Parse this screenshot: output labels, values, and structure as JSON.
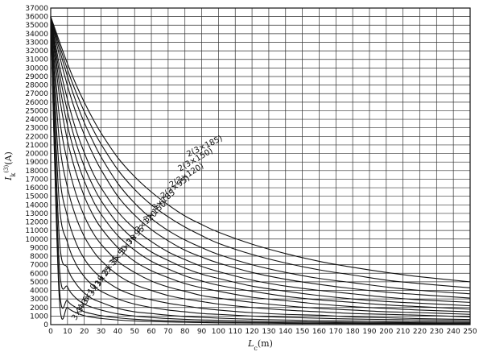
{
  "chart_data": {
    "type": "line",
    "title": "",
    "xlabel": {
      "main": "L",
      "sub": "c",
      "unit": "(m)"
    },
    "ylabel": {
      "main": "I",
      "sub": "k",
      "sup": "(3)",
      "unit": "(A)"
    },
    "xlim": [
      0,
      250
    ],
    "ylim": [
      0,
      37000
    ],
    "x_ticks": [
      0,
      10,
      20,
      30,
      40,
      50,
      60,
      70,
      80,
      90,
      100,
      110,
      120,
      130,
      140,
      150,
      160,
      170,
      180,
      190,
      200,
      210,
      220,
      230,
      240,
      250
    ],
    "y_ticks": [
      0,
      1000,
      2000,
      3000,
      4000,
      5000,
      6000,
      7000,
      8000,
      9000,
      10000,
      11000,
      12000,
      13000,
      14000,
      15000,
      16000,
      17000,
      18000,
      19000,
      20000,
      21000,
      22000,
      23000,
      24000,
      25000,
      26000,
      27000,
      28000,
      29000,
      30000,
      31000,
      32000,
      33000,
      34000,
      35000,
      36000,
      37000
    ],
    "grid": true,
    "x": [
      0,
      5,
      10,
      15,
      20,
      25,
      30,
      40,
      50,
      60,
      70,
      80,
      90,
      100,
      120,
      140,
      160,
      180,
      200,
      220,
      250
    ],
    "series": [
      {
        "name": "2(3×185)",
        "values": [
          36000,
          33200,
          30500,
          28100,
          26000,
          24100,
          22400,
          19500,
          17300,
          15500,
          14000,
          12700,
          11700,
          10800,
          9400,
          8300,
          7400,
          6700,
          6100,
          5600,
          5000
        ]
      },
      {
        "name": "2(3×150)",
        "values": [
          36000,
          32800,
          29800,
          27200,
          24900,
          22900,
          21100,
          18100,
          15800,
          14000,
          12600,
          11400,
          10400,
          9500,
          8200,
          7200,
          6400,
          5800,
          5200,
          4800,
          4300
        ]
      },
      {
        "name": "2(3×120)",
        "values": [
          36000,
          32300,
          29000,
          26100,
          23600,
          21500,
          19600,
          16500,
          14200,
          12400,
          11000,
          9900,
          9000,
          8200,
          7000,
          6100,
          5400,
          4900,
          4400,
          4000,
          3600
        ]
      },
      {
        "name": "2(3×95)",
        "values": [
          36000,
          31600,
          27900,
          24800,
          22200,
          20000,
          18100,
          15000,
          12800,
          11100,
          9800,
          8700,
          7900,
          7200,
          6100,
          5300,
          4700,
          4200,
          3800,
          3500,
          3100
        ]
      },
      {
        "name": "3×185",
        "values": [
          36000,
          30500,
          26300,
          22800,
          20100,
          17800,
          16000,
          13200,
          11200,
          9700,
          8500,
          7600,
          6800,
          6200,
          5200,
          4500,
          4000,
          3600,
          3200,
          2900,
          2600
        ]
      },
      {
        "name": "3×150",
        "values": [
          36000,
          29600,
          24900,
          21300,
          18500,
          16300,
          14500,
          11800,
          9900,
          8500,
          7500,
          6600,
          5900,
          5400,
          4500,
          3900,
          3400,
          3000,
          2700,
          2500,
          2200
        ]
      },
      {
        "name": "3×120",
        "values": [
          36000,
          28400,
          23300,
          19600,
          16800,
          14600,
          12900,
          10400,
          8700,
          7400,
          6500,
          5700,
          5100,
          4600,
          3900,
          3300,
          2900,
          2600,
          2300,
          2100,
          1800
        ]
      },
      {
        "name": "3×95",
        "values": [
          36000,
          27000,
          21500,
          17800,
          15000,
          12900,
          11300,
          9000,
          7400,
          6300,
          5500,
          4800,
          4300,
          3900,
          3200,
          2800,
          2400,
          2100,
          1900,
          1700,
          1500
        ]
      },
      {
        "name": "3×70",
        "values": [
          36000,
          24600,
          19000,
          15300,
          12700,
          10800,
          9400,
          7400,
          6100,
          5100,
          4400,
          3900,
          3400,
          3100,
          2600,
          2200,
          1900,
          1700,
          1500,
          1400,
          1200
        ]
      },
      {
        "name": "3×50",
        "values": [
          36000,
          21800,
          16000,
          12600,
          10300,
          8700,
          7500,
          5800,
          4700,
          4000,
          3400,
          3000,
          2700,
          2400,
          2000,
          1700,
          1500,
          1300,
          1200,
          1100,
          900
        ]
      },
      {
        "name": "3×35",
        "values": [
          36000,
          18200,
          12600,
          9600,
          7700,
          6400,
          5500,
          4200,
          3400,
          2900,
          2500,
          2200,
          1900,
          1700,
          1400,
          1200,
          1100,
          900,
          800,
          700,
          600
        ]
      },
      {
        "name": "3×25",
        "values": [
          36000,
          14500,
          9600,
          7100,
          5600,
          4600,
          3900,
          3000,
          2400,
          2000,
          1700,
          1500,
          1300,
          1200,
          1000,
          850,
          750,
          650,
          600,
          550,
          480
        ]
      },
      {
        "name": "3×16",
        "values": [
          36000,
          10500,
          6600,
          4800,
          3700,
          3000,
          2600,
          1900,
          1500,
          1300,
          1100,
          950,
          850,
          760,
          630,
          540,
          470,
          420,
          380,
          340,
          300
        ]
      },
      {
        "name": "3×10",
        "values": [
          36000,
          7300,
          4400,
          3100,
          2400,
          2000,
          1700,
          1250,
          1000,
          830,
          710,
          620,
          550,
          500,
          410,
          350,
          310,
          270,
          250,
          220,
          200
        ]
      },
      {
        "name": "3×6",
        "values": [
          36000,
          4900,
          2800,
          2000,
          1500,
          1250,
          1050,
          790,
          630,
          520,
          450,
          390,
          350,
          310,
          260,
          220,
          190,
          170,
          160,
          140,
          120
        ]
      },
      {
        "name": "3×4",
        "values": [
          36000,
          3500,
          2000,
          1400,
          1050,
          850,
          720,
          540,
          430,
          360,
          310,
          270,
          240,
          210,
          180,
          150,
          130,
          120,
          110,
          100,
          90
        ]
      }
    ],
    "labels": [
      {
        "text": "2(3×185)",
        "x": 82,
        "y": 19600,
        "angle": -26
      },
      {
        "text": "2(3×150)",
        "x": 77,
        "y": 17900,
        "angle": -30
      },
      {
        "text": "2(3×120)",
        "x": 72,
        "y": 16000,
        "angle": -32
      },
      {
        "text": "2(3×95)",
        "x": 67,
        "y": 14700,
        "angle": -36
      },
      {
        "text": "3×185",
        "x": 62,
        "y": 13300,
        "angle": -40
      },
      {
        "text": "3×150",
        "x": 57,
        "y": 11900,
        "angle": -42
      },
      {
        "text": "3×120",
        "x": 52,
        "y": 10700,
        "angle": -44
      },
      {
        "text": "3×95",
        "x": 47,
        "y": 9300,
        "angle": -46
      },
      {
        "text": "3×70",
        "x": 43,
        "y": 8200,
        "angle": -50
      },
      {
        "text": "3×50",
        "x": 38,
        "y": 6900,
        "angle": -52
      },
      {
        "text": "3×35",
        "x": 33,
        "y": 5700,
        "angle": -54
      },
      {
        "text": "3×25",
        "x": 29,
        "y": 4400,
        "angle": -56
      },
      {
        "text": "3×16",
        "x": 25,
        "y": 3300,
        "angle": -58
      },
      {
        "text": "3×10",
        "x": 21,
        "y": 2300,
        "angle": -60
      },
      {
        "text": "3×6",
        "x": 18,
        "y": 1350,
        "angle": -60
      },
      {
        "text": "3×4",
        "x": 15,
        "y": 450,
        "angle": -60
      }
    ]
  }
}
